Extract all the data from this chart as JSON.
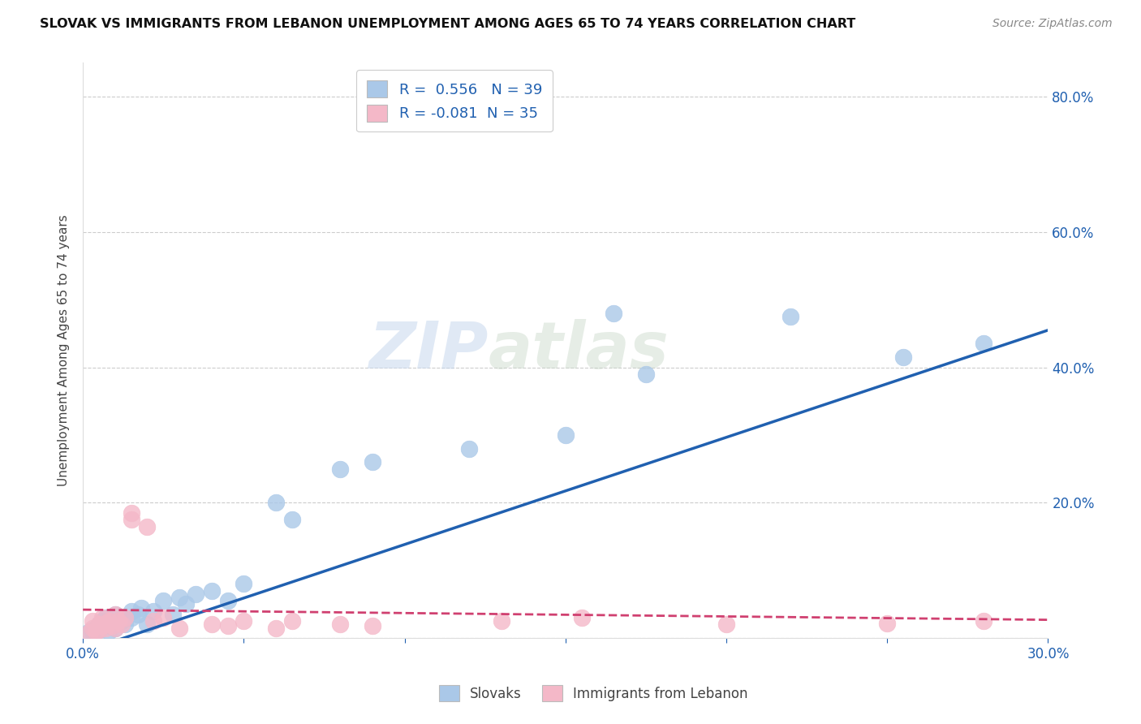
{
  "title": "SLOVAK VS IMMIGRANTS FROM LEBANON UNEMPLOYMENT AMONG AGES 65 TO 74 YEARS CORRELATION CHART",
  "source": "Source: ZipAtlas.com",
  "ylabel": "Unemployment Among Ages 65 to 74 years",
  "xlim": [
    0.0,
    0.3
  ],
  "ylim": [
    0.0,
    0.85
  ],
  "yticks": [
    0.0,
    0.2,
    0.4,
    0.6,
    0.8
  ],
  "ytick_labels": [
    "",
    "20.0%",
    "40.0%",
    "60.0%",
    "80.0%"
  ],
  "xticks": [
    0.0,
    0.05,
    0.1,
    0.15,
    0.2,
    0.25,
    0.3
  ],
  "xtick_labels": [
    "0.0%",
    "",
    "",
    "",
    "",
    "",
    "30.0%"
  ],
  "blue_R": 0.556,
  "blue_N": 39,
  "pink_R": -0.081,
  "pink_N": 35,
  "blue_color": "#aac8e8",
  "pink_color": "#f4b8c8",
  "blue_line_color": "#2060b0",
  "pink_line_color": "#d04070",
  "blue_scatter_x": [
    0.002,
    0.003,
    0.004,
    0.005,
    0.005,
    0.006,
    0.007,
    0.007,
    0.008,
    0.009,
    0.01,
    0.01,
    0.012,
    0.013,
    0.015,
    0.015,
    0.017,
    0.018,
    0.02,
    0.022,
    0.025,
    0.028,
    0.03,
    0.032,
    0.035,
    0.04,
    0.045,
    0.05,
    0.06,
    0.065,
    0.08,
    0.09,
    0.12,
    0.15,
    0.165,
    0.175,
    0.22,
    0.255,
    0.28
  ],
  "blue_scatter_y": [
    0.01,
    0.008,
    0.015,
    0.012,
    0.02,
    0.025,
    0.018,
    0.03,
    0.01,
    0.022,
    0.015,
    0.035,
    0.025,
    0.02,
    0.04,
    0.03,
    0.035,
    0.045,
    0.02,
    0.04,
    0.055,
    0.035,
    0.06,
    0.05,
    0.065,
    0.07,
    0.055,
    0.08,
    0.2,
    0.175,
    0.25,
    0.26,
    0.28,
    0.3,
    0.48,
    0.39,
    0.475,
    0.415,
    0.435
  ],
  "pink_scatter_x": [
    0.002,
    0.003,
    0.003,
    0.004,
    0.005,
    0.005,
    0.006,
    0.006,
    0.007,
    0.007,
    0.008,
    0.009,
    0.01,
    0.01,
    0.011,
    0.012,
    0.013,
    0.015,
    0.015,
    0.02,
    0.022,
    0.025,
    0.03,
    0.04,
    0.045,
    0.05,
    0.06,
    0.065,
    0.08,
    0.09,
    0.13,
    0.155,
    0.2,
    0.25,
    0.28
  ],
  "pink_scatter_y": [
    0.008,
    0.015,
    0.025,
    0.01,
    0.012,
    0.02,
    0.018,
    0.03,
    0.015,
    0.022,
    0.025,
    0.018,
    0.015,
    0.035,
    0.025,
    0.02,
    0.03,
    0.175,
    0.185,
    0.165,
    0.025,
    0.03,
    0.015,
    0.02,
    0.018,
    0.025,
    0.015,
    0.025,
    0.02,
    0.018,
    0.025,
    0.03,
    0.02,
    0.022,
    0.025
  ],
  "blue_line_x": [
    0.0,
    0.3
  ],
  "blue_line_y": [
    -0.02,
    0.455
  ],
  "pink_line_x": [
    0.0,
    0.3
  ],
  "pink_line_y": [
    0.042,
    0.027
  ],
  "background_color": "#ffffff",
  "watermark_text": "ZIPatlas",
  "legend_labels": [
    "Slovaks",
    "Immigrants from Lebanon"
  ]
}
